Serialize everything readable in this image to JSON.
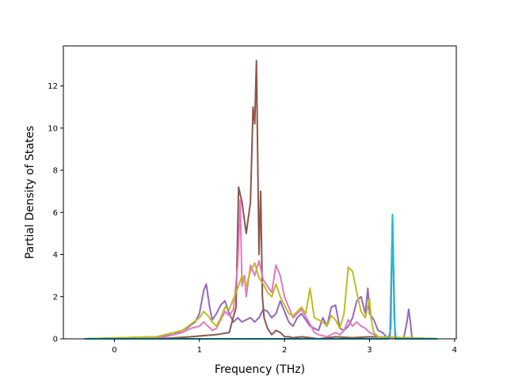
{
  "chart_data": {
    "type": "line",
    "title": "",
    "xlabel": "Frequency (THz)",
    "ylabel": "Partial Density of States",
    "xlim": [
      -0.6,
      4.02
    ],
    "ylim": [
      0,
      13.9
    ],
    "xticks": [
      0,
      1,
      2,
      3,
      4
    ],
    "yticks": [
      0,
      2,
      4,
      6,
      8,
      10,
      12
    ],
    "grid": false,
    "legend": "none",
    "series": [
      {
        "color": "#9467bd",
        "x": [
          -0.35,
          0.5,
          0.7,
          0.85,
          0.95,
          1.0,
          1.05,
          1.08,
          1.12,
          1.15,
          1.2,
          1.25,
          1.3,
          1.35,
          1.4,
          1.45,
          1.5,
          1.55,
          1.6,
          1.65,
          1.7,
          1.75,
          1.8,
          1.85,
          1.9,
          1.95,
          2.0,
          2.05,
          2.1,
          2.15,
          2.2,
          2.25,
          2.3,
          2.35,
          2.4,
          2.45,
          2.5,
          2.55,
          2.6,
          2.65,
          2.7,
          2.75,
          2.8,
          2.85,
          2.9,
          2.95,
          2.98,
          3.0,
          3.05,
          3.1,
          3.15,
          3.2,
          3.24,
          3.27,
          3.29,
          3.3,
          3.35,
          3.4,
          3.44,
          3.46,
          3.48,
          3.5,
          3.6,
          3.8
        ],
        "y": [
          0,
          0.1,
          0.2,
          0.5,
          0.8,
          1.2,
          2.3,
          2.6,
          1.5,
          0.9,
          1.2,
          1.6,
          1.8,
          1.2,
          0.8,
          1.0,
          0.8,
          0.9,
          1.0,
          0.8,
          1.0,
          1.4,
          1.3,
          1.0,
          1.2,
          1.8,
          1.3,
          0.8,
          0.6,
          1.0,
          1.2,
          0.9,
          0.6,
          0.5,
          0.4,
          1.0,
          0.6,
          1.5,
          1.6,
          0.5,
          0.4,
          0.6,
          1.0,
          1.8,
          2.0,
          1.2,
          2.4,
          1.2,
          0.9,
          0.4,
          0.3,
          0.1,
          0.02,
          5.8,
          2.0,
          0,
          0,
          0,
          0.8,
          1.4,
          0.8,
          0,
          0,
          0
        ]
      },
      {
        "color": "#8c564b",
        "x": [
          -0.35,
          0.6,
          0.9,
          1.2,
          1.35,
          1.43,
          1.46,
          1.5,
          1.55,
          1.6,
          1.63,
          1.65,
          1.67,
          1.7,
          1.72,
          1.74,
          1.76,
          1.8,
          1.85,
          1.9,
          1.95,
          2.0,
          2.05,
          2.1,
          2.2,
          2.3,
          2.4,
          2.6,
          2.8,
          3.0,
          3.8
        ],
        "y": [
          0,
          0.02,
          0.1,
          0.2,
          0.3,
          1.5,
          7.2,
          6.5,
          5.0,
          6.5,
          11.0,
          10.2,
          13.2,
          4.0,
          7.0,
          2.0,
          1.0,
          0.5,
          0.2,
          0.4,
          0.3,
          0.1,
          0.1,
          0.05,
          0.1,
          0.05,
          0.0,
          0.1,
          0.05,
          0.1,
          0
        ]
      },
      {
        "color": "#e377c2",
        "x": [
          -0.35,
          0.6,
          0.8,
          0.9,
          1.0,
          1.05,
          1.1,
          1.15,
          1.2,
          1.25,
          1.3,
          1.35,
          1.4,
          1.45,
          1.48,
          1.5,
          1.53,
          1.55,
          1.6,
          1.65,
          1.7,
          1.75,
          1.8,
          1.85,
          1.9,
          1.95,
          2.0,
          2.05,
          2.1,
          2.2,
          2.3,
          2.35,
          2.4,
          2.5,
          2.6,
          2.65,
          2.7,
          2.75,
          2.8,
          2.85,
          2.9,
          2.95,
          3.0,
          3.1,
          3.8
        ],
        "y": [
          0,
          0.1,
          0.3,
          0.5,
          0.6,
          0.8,
          0.6,
          0.4,
          0.5,
          0.9,
          1.3,
          1.1,
          1.4,
          3.5,
          6.6,
          2.5,
          3.0,
          2.0,
          3.5,
          3.0,
          3.7,
          2.8,
          2.5,
          2.2,
          3.5,
          3.0,
          2.0,
          1.5,
          1.0,
          1.4,
          0.7,
          0.3,
          0.2,
          0.1,
          0.3,
          0.2,
          0.4,
          0.9,
          0.6,
          0.8,
          0.6,
          0.5,
          0.3,
          0.1,
          0
        ]
      },
      {
        "color": "#bcbd22",
        "x": [
          -0.35,
          0.5,
          0.7,
          0.8,
          0.9,
          1.0,
          1.05,
          1.1,
          1.15,
          1.2,
          1.25,
          1.3,
          1.35,
          1.4,
          1.45,
          1.5,
          1.55,
          1.6,
          1.65,
          1.7,
          1.75,
          1.8,
          1.85,
          1.9,
          1.95,
          2.0,
          2.05,
          2.1,
          2.15,
          2.2,
          2.25,
          2.3,
          2.35,
          2.4,
          2.45,
          2.5,
          2.55,
          2.6,
          2.65,
          2.7,
          2.75,
          2.8,
          2.85,
          2.9,
          2.95,
          3.0,
          3.02,
          3.05,
          3.1,
          3.8
        ],
        "y": [
          0,
          0.1,
          0.3,
          0.4,
          0.7,
          1.0,
          1.3,
          1.1,
          0.8,
          0.6,
          1.0,
          1.5,
          1.4,
          1.9,
          2.4,
          3.0,
          2.5,
          3.2,
          3.6,
          2.9,
          2.6,
          2.2,
          2.0,
          2.6,
          2.0,
          1.6,
          1.2,
          1.1,
          1.3,
          1.5,
          1.2,
          2.4,
          1.0,
          0.9,
          0.8,
          0.6,
          1.1,
          0.9,
          0.5,
          1.2,
          3.4,
          3.2,
          2.2,
          1.3,
          1.0,
          1.9,
          0.9,
          0.3,
          0.1,
          0
        ]
      },
      {
        "color": "#17becf",
        "x": [
          -0.35,
          3.22,
          3.25,
          3.27,
          3.29,
          3.31,
          3.8
        ],
        "y": [
          0,
          0,
          0.5,
          5.9,
          1.0,
          0,
          0
        ]
      }
    ]
  }
}
